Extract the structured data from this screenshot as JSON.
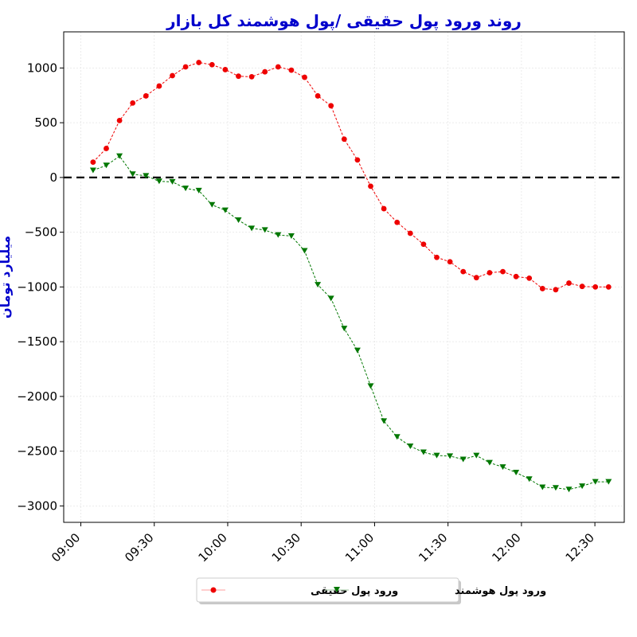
{
  "chart_data": {
    "type": "line",
    "title": "روند ورود پول حقیقی /پول هوشمند کل بازار",
    "ylabel": "میلیارد تومان",
    "xlabel": "",
    "ylim": [
      -3150,
      1330
    ],
    "yticks": [
      1000,
      500,
      0,
      -500,
      -1000,
      -1500,
      -2000,
      -2500,
      -3000
    ],
    "ytick_labels": [
      "1000",
      "500",
      "0",
      "−500",
      "−1000",
      "−1500",
      "−2000",
      "−2500",
      "−3000"
    ],
    "xlim_minutes": [
      -7,
      222
    ],
    "xticks_minutes": [
      0,
      30,
      60,
      90,
      120,
      150,
      180,
      210
    ],
    "xtick_labels": [
      "09:00",
      "09:30",
      "10:00",
      "10:30",
      "11:00",
      "11:30",
      "12:00",
      "12:30"
    ],
    "zero_line": true,
    "grid": true,
    "legend_position": "bottom-center",
    "x_minutes": [
      5,
      10.4,
      15.8,
      21.2,
      26.6,
      32,
      37.4,
      42.8,
      48.2,
      53.6,
      59,
      64.4,
      69.8,
      75.2,
      80.6,
      86,
      91.4,
      96.8,
      102.2,
      107.6,
      113,
      118.4,
      123.8,
      129.2,
      134.6,
      140,
      145.4,
      150.8,
      156.2,
      161.6,
      167,
      172.4,
      177.8,
      183.2,
      188.6,
      194,
      199.4,
      204.8,
      210.2,
      215.6
    ],
    "series": [
      {
        "name": "ورود پول حقیقی",
        "color": "#ee0000",
        "marker": "circle",
        "values": [
          140,
          265,
          520,
          680,
          745,
          835,
          930,
          1010,
          1050,
          1030,
          985,
          925,
          920,
          965,
          1010,
          980,
          915,
          745,
          655,
          350,
          160,
          -80,
          -285,
          -410,
          -510,
          -610,
          -730,
          -770,
          -860,
          -915,
          -870,
          -860,
          -905,
          -920,
          -1015,
          -1025,
          -965,
          -995,
          -1000,
          -1000
        ]
      },
      {
        "name": "ورود پول هوشمند",
        "color": "#007700",
        "marker": "triangle-down",
        "values": [
          65,
          110,
          195,
          30,
          15,
          -35,
          -40,
          -100,
          -120,
          -250,
          -300,
          -390,
          -465,
          -480,
          -525,
          -535,
          -670,
          -980,
          -1105,
          -1380,
          -1580,
          -1905,
          -2225,
          -2370,
          -2455,
          -2510,
          -2540,
          -2545,
          -2575,
          -2540,
          -2605,
          -2645,
          -2695,
          -2755,
          -2830,
          -2835,
          -2850,
          -2820,
          -2780,
          -2780
        ]
      }
    ]
  }
}
